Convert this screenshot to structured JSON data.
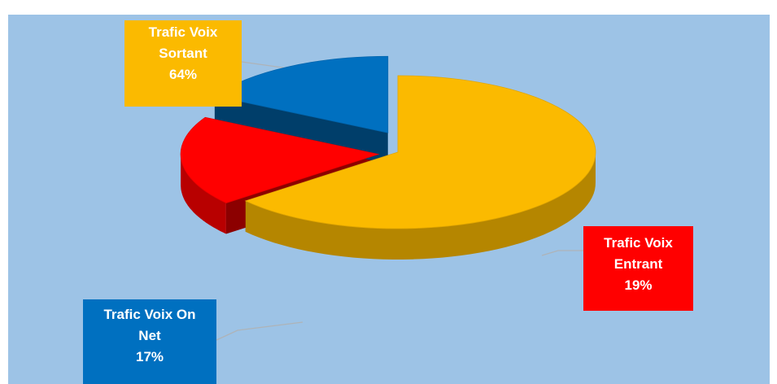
{
  "chart_data": {
    "type": "pie",
    "style": "3d-exploded",
    "title": "",
    "slices": [
      {
        "label_lines": [
          "Trafic Voix",
          "Sortant",
          "64%"
        ],
        "value": 64,
        "color": "#fbba00"
      },
      {
        "label_lines": [
          "Trafic Voix",
          "Entrant",
          "19%"
        ],
        "value": 19,
        "color": "#ff0000"
      },
      {
        "label_lines": [
          "Trafic Voix On",
          "Net",
          "17%"
        ],
        "value": 17,
        "color": "#0070c0"
      }
    ],
    "background": "#9dc3e6",
    "data_labels": "outside-boxed"
  }
}
